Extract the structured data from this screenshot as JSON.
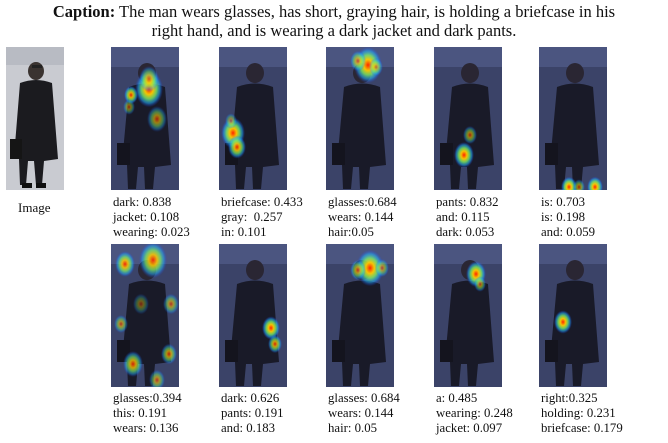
{
  "caption": {
    "label": "Caption:",
    "line1": "The man wears glasses, has short, graying hair, is holding a briefcase in his",
    "line2": "right hand, and is wearing a dark jacket and dark pants."
  },
  "image_label": "Image",
  "rows": [
    {
      "panels": [
        {
          "words": [
            "dark: 0.838",
            "jacket: 0.108",
            "wearing: 0.023"
          ]
        },
        {
          "words": [
            "briefcase: 0.433",
            "gray:  0.257",
            "in: 0.101"
          ]
        },
        {
          "words": [
            "glasses:0.684",
            "wears: 0.144",
            "hair:0.05"
          ]
        },
        {
          "words": [
            "pants: 0.832",
            "and: 0.115",
            "dark: 0.053"
          ]
        },
        {
          "words": [
            "is: 0.703",
            "is: 0.198",
            "and: 0.059"
          ]
        }
      ]
    },
    {
      "panels": [
        {
          "words": [
            "glasses:0.394",
            "this: 0.191",
            "wears: 0.136"
          ]
        },
        {
          "words": [
            "dark: 0.626",
            "pants: 0.191",
            "and: 0.183"
          ]
        },
        {
          "words": [
            "glasses: 0.684",
            "wears: 0.144",
            "hair: 0.05"
          ]
        },
        {
          "words": [
            "a: 0.485",
            "wearing: 0.248",
            "jacket: 0.097"
          ]
        },
        {
          "words": [
            "right:0.325",
            "holding: 0.231",
            "briefcase: 0.179"
          ]
        }
      ]
    }
  ]
}
